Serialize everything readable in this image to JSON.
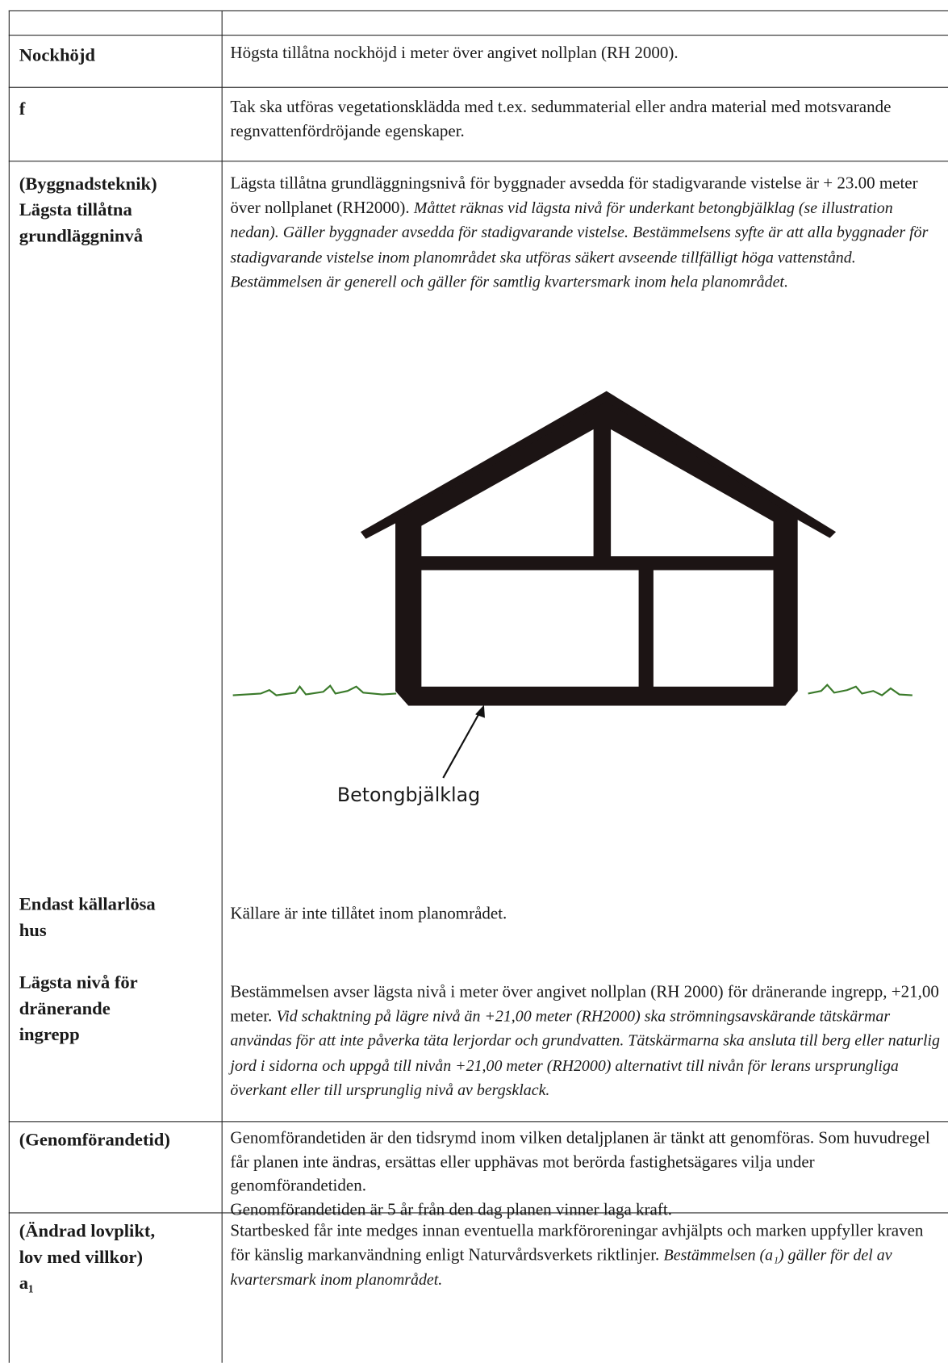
{
  "table": {
    "rows": [
      {
        "label": [
          "Nockhöjd"
        ],
        "paragraphs": [
          "Högsta tillåtna nockhöjd i meter över angivet nollplan (RH 2000)."
        ]
      },
      {
        "label": [
          "f"
        ],
        "paragraphs": [
          "Tak ska utföras vegetationsklädda med t.ex. sedummaterial eller andra material med motsvarande regnvattenfördröjande egenskaper."
        ]
      },
      {
        "label": [
          "(Byggnadsteknik)",
          "Lägsta tillåtna",
          "grundläggninvå"
        ],
        "paragraphs": [
          "Lägsta tillåtna grundläggningsnivå för byggnader avsedda för stadigvarande vistelse är + 23.00 meter över nollplanet (RH2000)."
        ],
        "note": "Måttet räknas vid lägsta nivå för underkant betongbjälklag (se illustration nedan). Gäller byggnader avsedda för stadigvarande vistelse. Bestämmelsens syfte är att alla byggnader för stadigvarande vistelse inom planområdet ska utföras säkert avseende tillfälligt höga vattenstånd. Bestämmelsen är generell och gäller för samtlig kvartersmark inom hela planområdet.",
        "figure_label": "Betongbjälklag"
      },
      {
        "label": [
          "Endast källarlösa",
          "hus"
        ],
        "paragraphs": [
          "Källare är inte tillåtet inom planområdet."
        ]
      },
      {
        "label": [
          "Lägsta nivå för",
          "dränerande",
          "ingrepp"
        ],
        "paragraphs": [
          "Bestämmelsen avser lägsta nivå i meter över angivet nollplan (RH 2000) för dränerande ingrepp, +21,00 meter."
        ],
        "note": "Vid schaktning på lägre nivå än +21,00 meter (RH2000) ska strömningsavskärande tätskärmar användas för att inte påverka täta lerjordar och grundvatten. Tätskärmarna ska ansluta till berg eller naturlig jord i sidorna och uppgå till nivån +21,00 meter (RH2000) alternativt till nivån för lerans ursprungliga överkant eller till ursprunglig nivå av bergsklack."
      },
      {
        "label": [
          "(Genomförandetid)"
        ],
        "paragraphs": [
          "Genomförandetiden är den tidsrymd inom vilken detaljplanen är tänkt att genomföras. Som huvudregel får planen inte ändras, ersättas eller upphävas mot berörda fastighetsägares vilja under genomförandetiden.",
          "Genomförandetiden är 5 år från den dag planen vinner laga kraft."
        ]
      },
      {
        "label": [
          "(Ändrad lovplikt,",
          "lov med villkor)",
          "a₁"
        ],
        "paragraphs": [
          "Startbesked får inte medges innan eventuella markföroreningar avhjälpts och marken uppfyller kraven för känslig markanvändning enligt Naturvårdsverkets riktlinjer."
        ],
        "note": "Bestämmelsen (a₁) gäller för del av kvartersmark inom planområdet."
      }
    ]
  }
}
